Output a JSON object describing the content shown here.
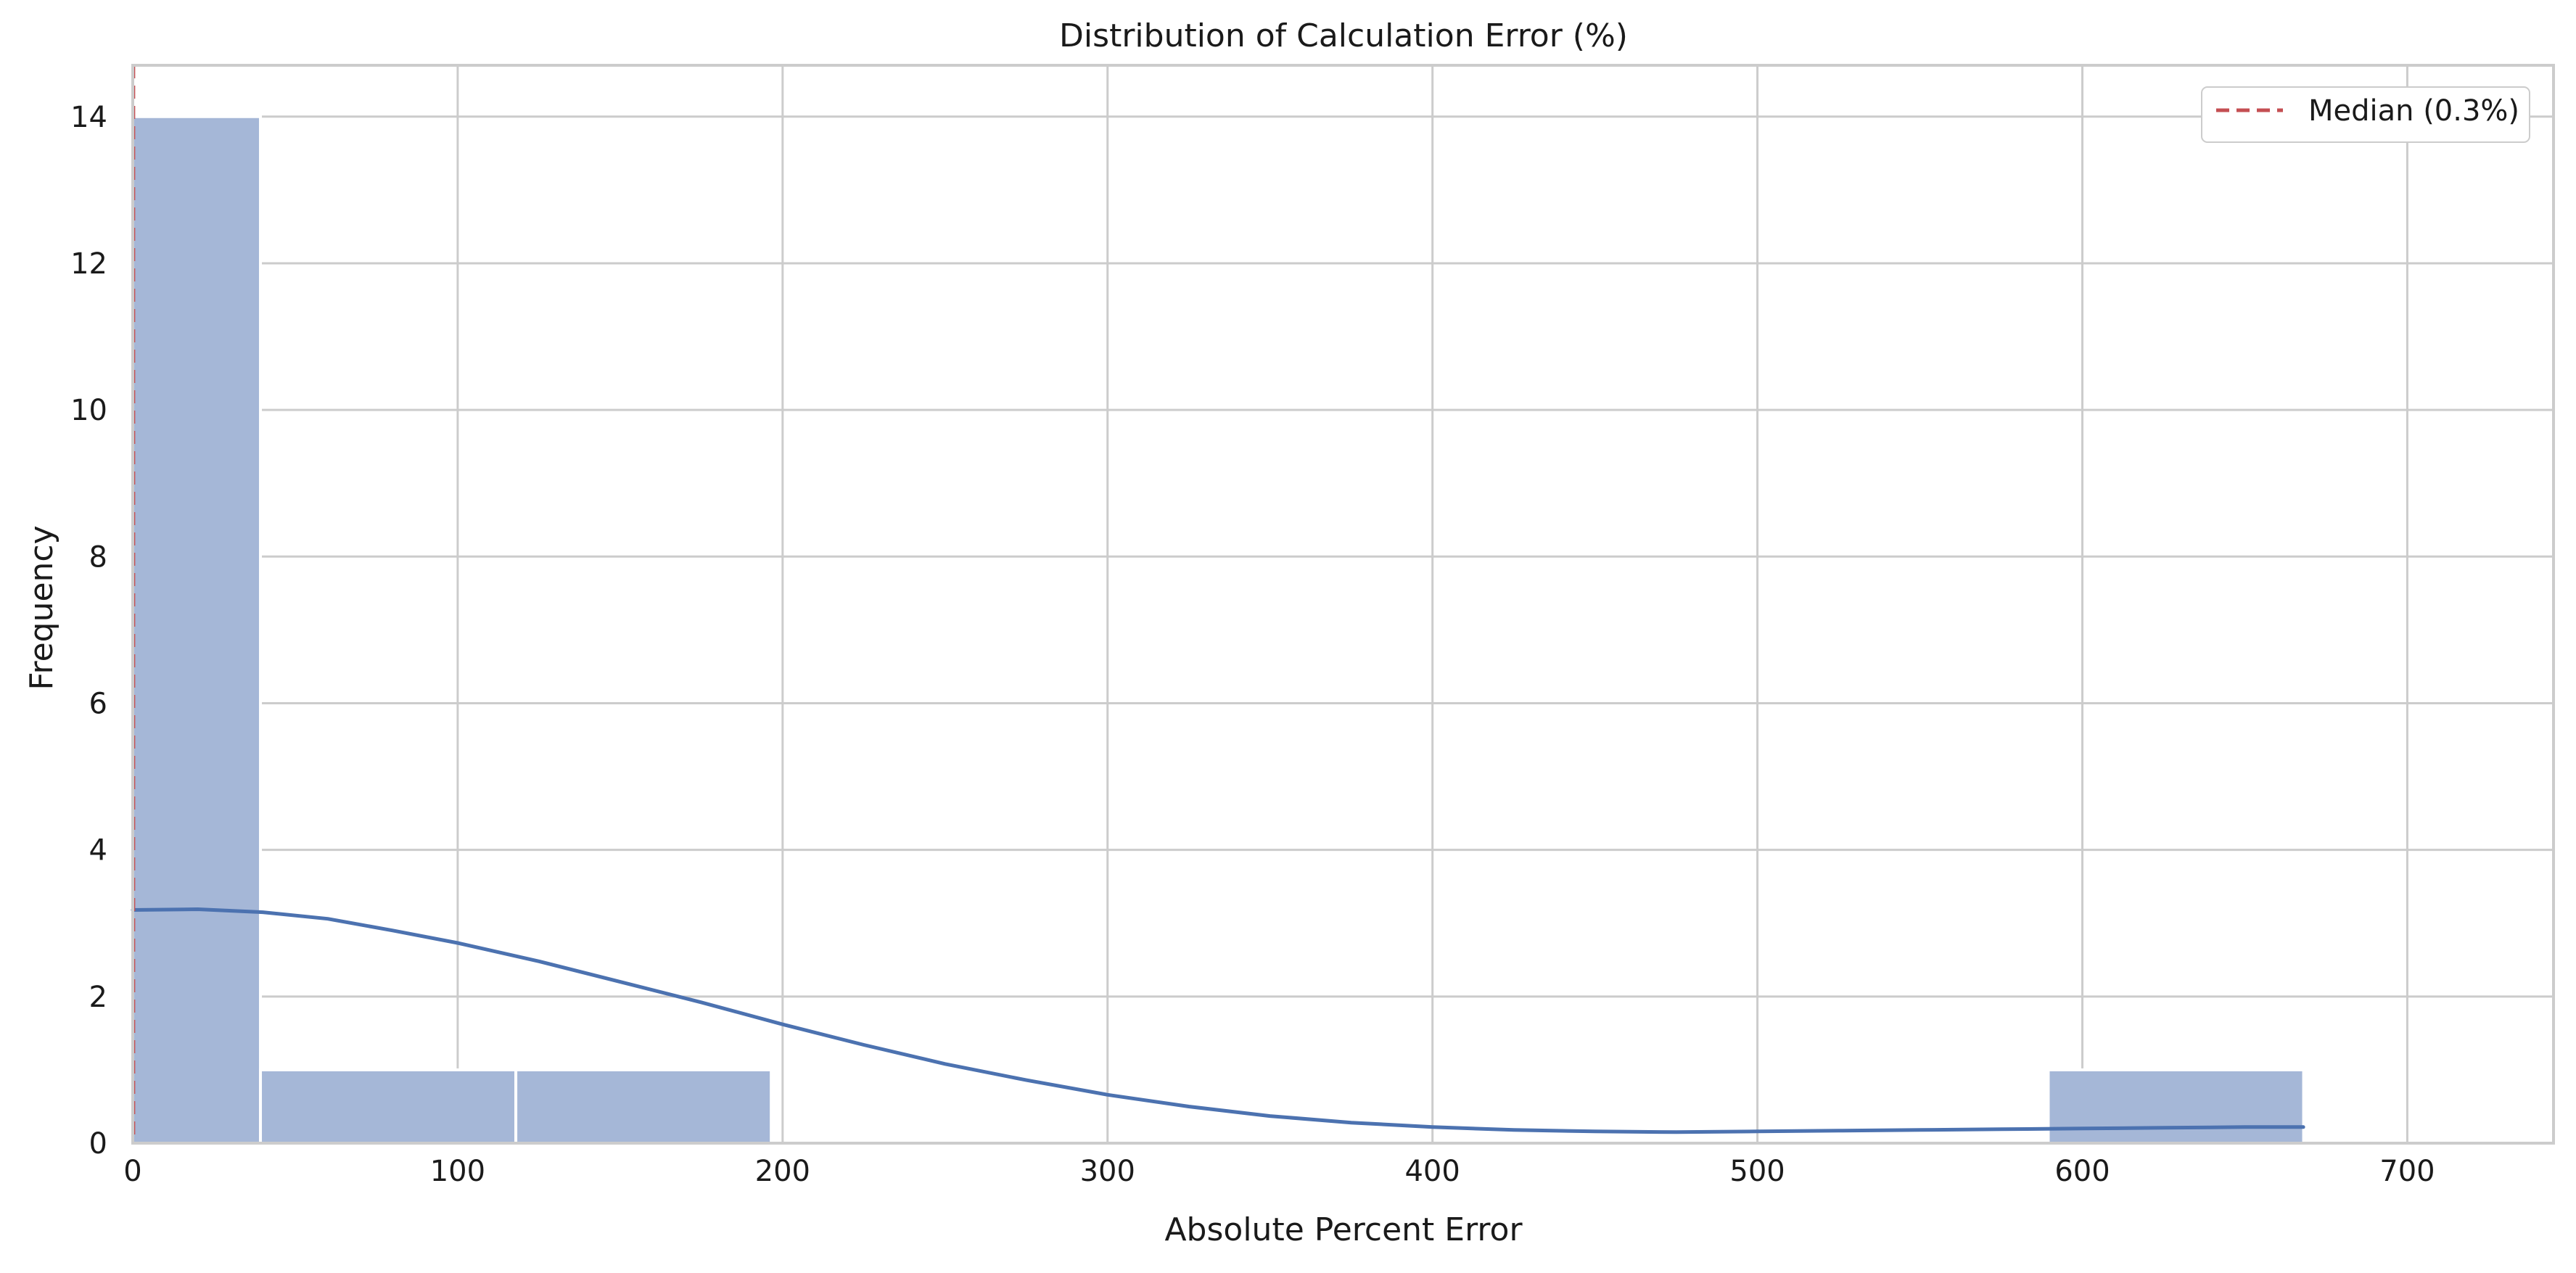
{
  "chart_data": {
    "type": "bar",
    "title": "Distribution of Calculation Error (%)",
    "xlabel": "Absolute Percent Error",
    "ylabel": "Frequency",
    "xlim": [
      0,
      745
    ],
    "ylim": [
      0,
      14.7
    ],
    "xticks": [
      0,
      100,
      200,
      300,
      400,
      500,
      600,
      700
    ],
    "yticks": [
      0,
      2,
      4,
      6,
      8,
      10,
      12,
      14
    ],
    "bins": [
      {
        "x0": 0,
        "x1": 39.3,
        "count": 14
      },
      {
        "x0": 39.3,
        "x1": 117.9,
        "count": 1
      },
      {
        "x0": 117.9,
        "x1": 196.5,
        "count": 1
      },
      {
        "x0": 589.5,
        "x1": 668.1,
        "count": 1
      }
    ],
    "kde": {
      "x": [
        0,
        20,
        40,
        60,
        80,
        100,
        125,
        150,
        175,
        200,
        225,
        250,
        275,
        300,
        325,
        350,
        375,
        400,
        425,
        450,
        475,
        500,
        525,
        550,
        575,
        600,
        625,
        650,
        668
      ],
      "y": [
        3.18,
        3.19,
        3.15,
        3.06,
        2.9,
        2.73,
        2.48,
        2.2,
        1.92,
        1.62,
        1.34,
        1.08,
        0.86,
        0.66,
        0.5,
        0.37,
        0.28,
        0.22,
        0.18,
        0.16,
        0.15,
        0.16,
        0.17,
        0.18,
        0.19,
        0.2,
        0.21,
        0.22,
        0.22
      ]
    },
    "median": {
      "value": 0.3,
      "label": "Median (0.3%)"
    },
    "grid": true,
    "legend_position": "top-right",
    "colors": {
      "bar": "#a5b7d7",
      "bar_edge": "#ffffff",
      "kde": "#4c72b0",
      "median": "#c44e52",
      "grid": "#cccccc",
      "spine": "#cccccc"
    }
  }
}
